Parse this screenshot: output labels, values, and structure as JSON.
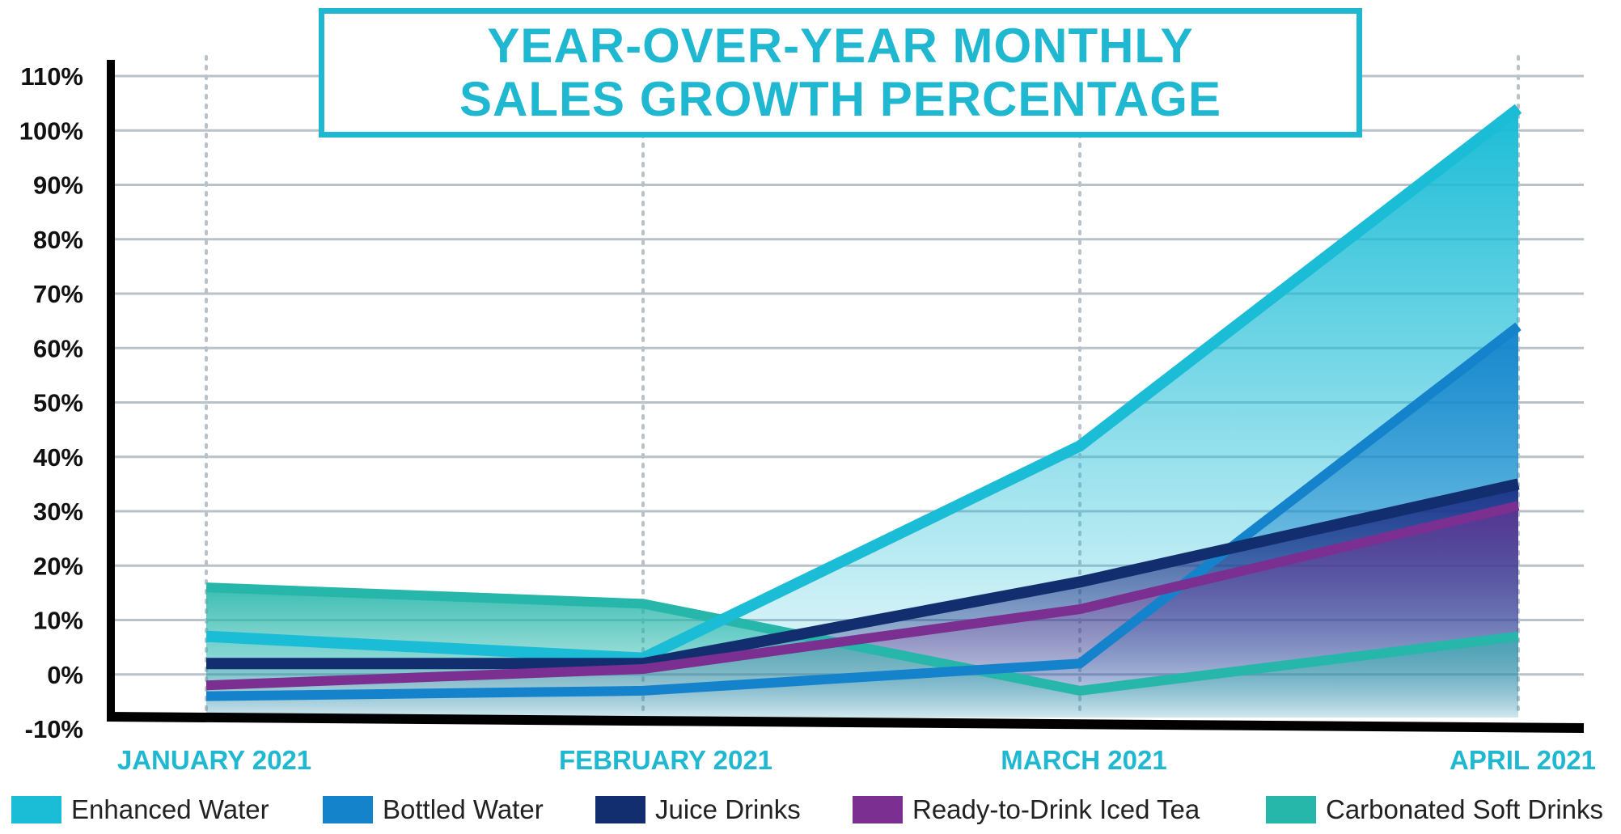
{
  "chart_data": {
    "type": "area",
    "title_lines": [
      "YEAR-OVER-YEAR MONTHLY",
      "SALES GROWTH PERCENTAGE"
    ],
    "categories": [
      "JANUARY 2021",
      "FEBRUARY 2021",
      "MARCH 2021",
      "APRIL 2021"
    ],
    "y_ticks": [
      "110%",
      "100%",
      "90%",
      "80%",
      "70%",
      "60%",
      "50%",
      "40%",
      "30%",
      "20%",
      "10%",
      "0%",
      "-10%"
    ],
    "ylim": [
      -10,
      110
    ],
    "grid": true,
    "legend_position": "bottom",
    "series": [
      {
        "name": "Enhanced Water",
        "color": "#1bbcd6",
        "values": [
          7,
          3,
          42,
          104
        ]
      },
      {
        "name": "Bottled Water",
        "color": "#1483cc",
        "values": [
          -4,
          -3,
          2,
          64
        ]
      },
      {
        "name": "Juice Drinks",
        "color": "#122e6e",
        "values": [
          2,
          2,
          17,
          35
        ]
      },
      {
        "name": "Ready-to-Drink Iced Tea",
        "color": "#7b2f90",
        "values": [
          -2,
          1,
          12,
          31
        ]
      },
      {
        "name": "Carbonated Soft Drinks",
        "color": "#26b6aa",
        "values": [
          16,
          13,
          -3,
          7
        ]
      }
    ]
  }
}
